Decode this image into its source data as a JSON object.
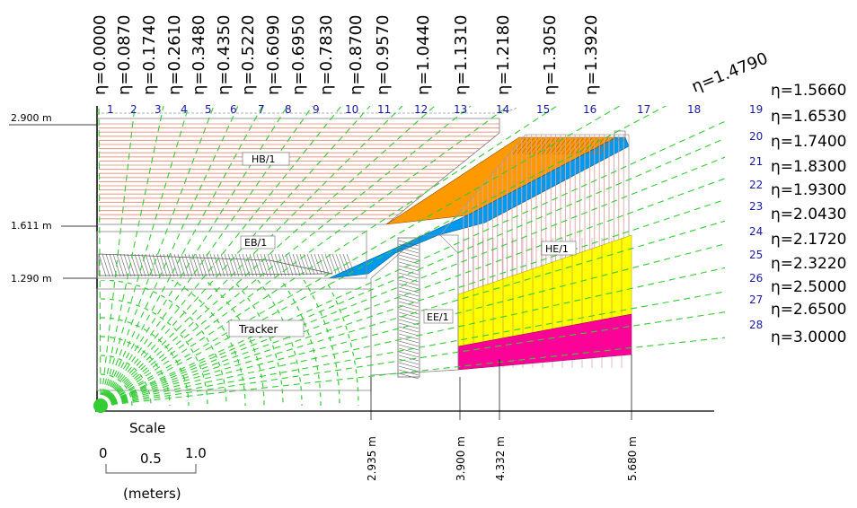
{
  "eta_top": [
    "η=0.0000",
    "η=0.0870",
    "η=0.1740",
    "η=0.2610",
    "η=0.3480",
    "η=0.4350",
    "η=0.5220",
    "η=0.6090",
    "η=0.6950",
    "η=0.7830",
    "η=0.8700",
    "η=0.9570",
    "η=1.0440",
    "η=1.1310",
    "η=1.2180",
    "η=1.3050",
    "η=1.3920"
  ],
  "eta_diag": "η=1.4790",
  "eta_right": [
    "η=1.5660",
    "η=1.6530",
    "η=1.7400",
    "η=1.8300",
    "η=1.9300",
    "η=2.0430",
    "η=2.1720",
    "η=2.3220",
    "η=2.5000",
    "η=2.6500",
    "η=3.0000"
  ],
  "towers_top": [
    "1",
    "2",
    "3",
    "4",
    "5",
    "6",
    "7",
    "8",
    "9",
    "10",
    "11",
    "12",
    "13",
    "14",
    "15",
    "16",
    "17",
    "18"
  ],
  "towers_right": [
    "19",
    "20",
    "21",
    "22",
    "23",
    "24",
    "25",
    "26",
    "27",
    "28"
  ],
  "radii": [
    "2.900 m",
    "1.611 m",
    "1.290 m"
  ],
  "z_positions": [
    "2.935 m",
    "3.900 m",
    "4.332 m",
    "5.680 m"
  ],
  "subdetectors": {
    "hb": "HB/1",
    "eb": "EB/1",
    "he": "HE/1",
    "ee": "EE/1",
    "tracker": "Tracker"
  },
  "scale": {
    "title": "Scale",
    "ticks": [
      "0",
      "0.5",
      "1.0"
    ],
    "unit": "(meters)"
  },
  "colors": {
    "eta_lines": "#33cc33",
    "hb_layers": "#e8a090",
    "orange": "#ff9900",
    "blue": "#0099ee",
    "yellow": "#ffff00",
    "magenta": "#ff0099",
    "tower_numbers": "#1a1aa8"
  }
}
